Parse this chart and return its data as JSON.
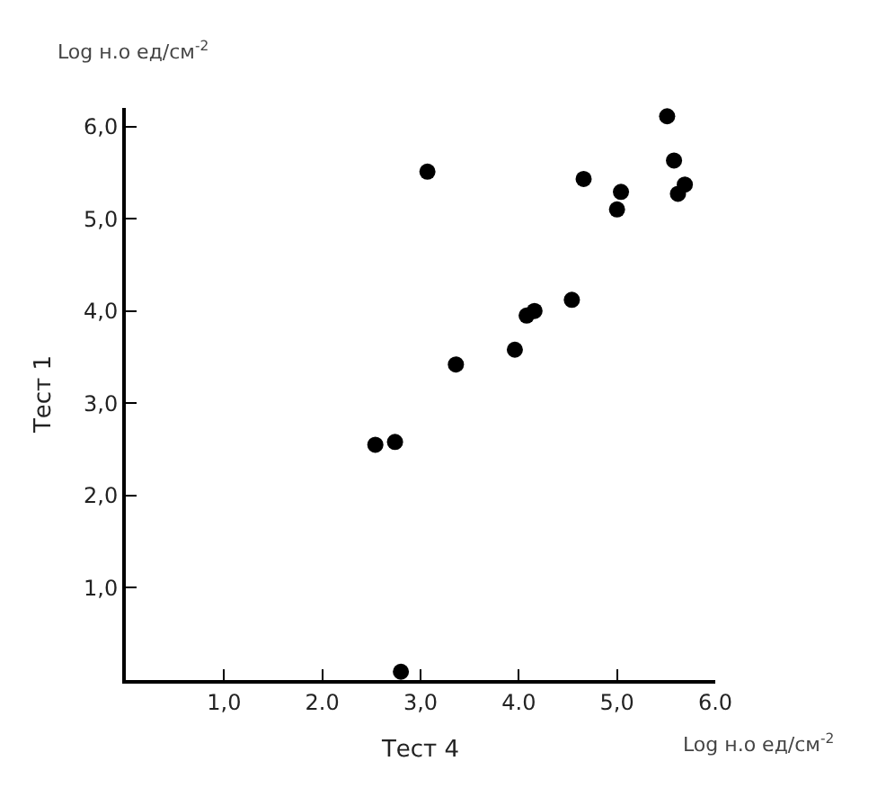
{
  "chart_data": {
    "type": "scatter",
    "xlabel": "Тест 4",
    "ylabel": "Тест 1",
    "annotations": [
      "Log н.о ед/см$^{-2}$",
      "Log н.о ед/см$^{-2}$"
    ],
    "x": [
      2.54,
      2.74,
      2.8,
      3.07,
      3.36,
      3.96,
      4.08,
      4.16,
      4.54,
      4.66,
      5.0,
      5.04,
      5.51,
      5.58,
      5.62,
      5.69
    ],
    "series": [
      {
        "color": "#000000",
        "values": [
          2.55,
          2.58,
          0.09,
          5.51,
          3.42,
          3.58,
          3.95,
          4.0,
          4.12,
          5.43,
          5.1,
          5.29,
          6.11,
          5.63,
          5.27,
          5.37
        ]
      }
    ],
    "xlim": [
      0,
      6.0
    ],
    "ylim": [
      0,
      6.2
    ],
    "xticks": [
      {
        "value": 1,
        "label": "1,0"
      },
      {
        "value": 2,
        "label": "2.0"
      },
      {
        "value": 3,
        "label": "3,0"
      },
      {
        "value": 4,
        "label": "4.0"
      },
      {
        "value": 5,
        "label": "5,0"
      },
      {
        "value": 6,
        "label": "6.0"
      }
    ],
    "yticks": [
      {
        "value": 1,
        "label": "1,0"
      },
      {
        "value": 2,
        "label": "2,0"
      },
      {
        "value": 3,
        "label": "3,0"
      },
      {
        "value": 4,
        "label": "4,0"
      },
      {
        "value": 5,
        "label": "5,0"
      },
      {
        "value": 6,
        "label": "6,0"
      }
    ],
    "marker": "circle"
  }
}
